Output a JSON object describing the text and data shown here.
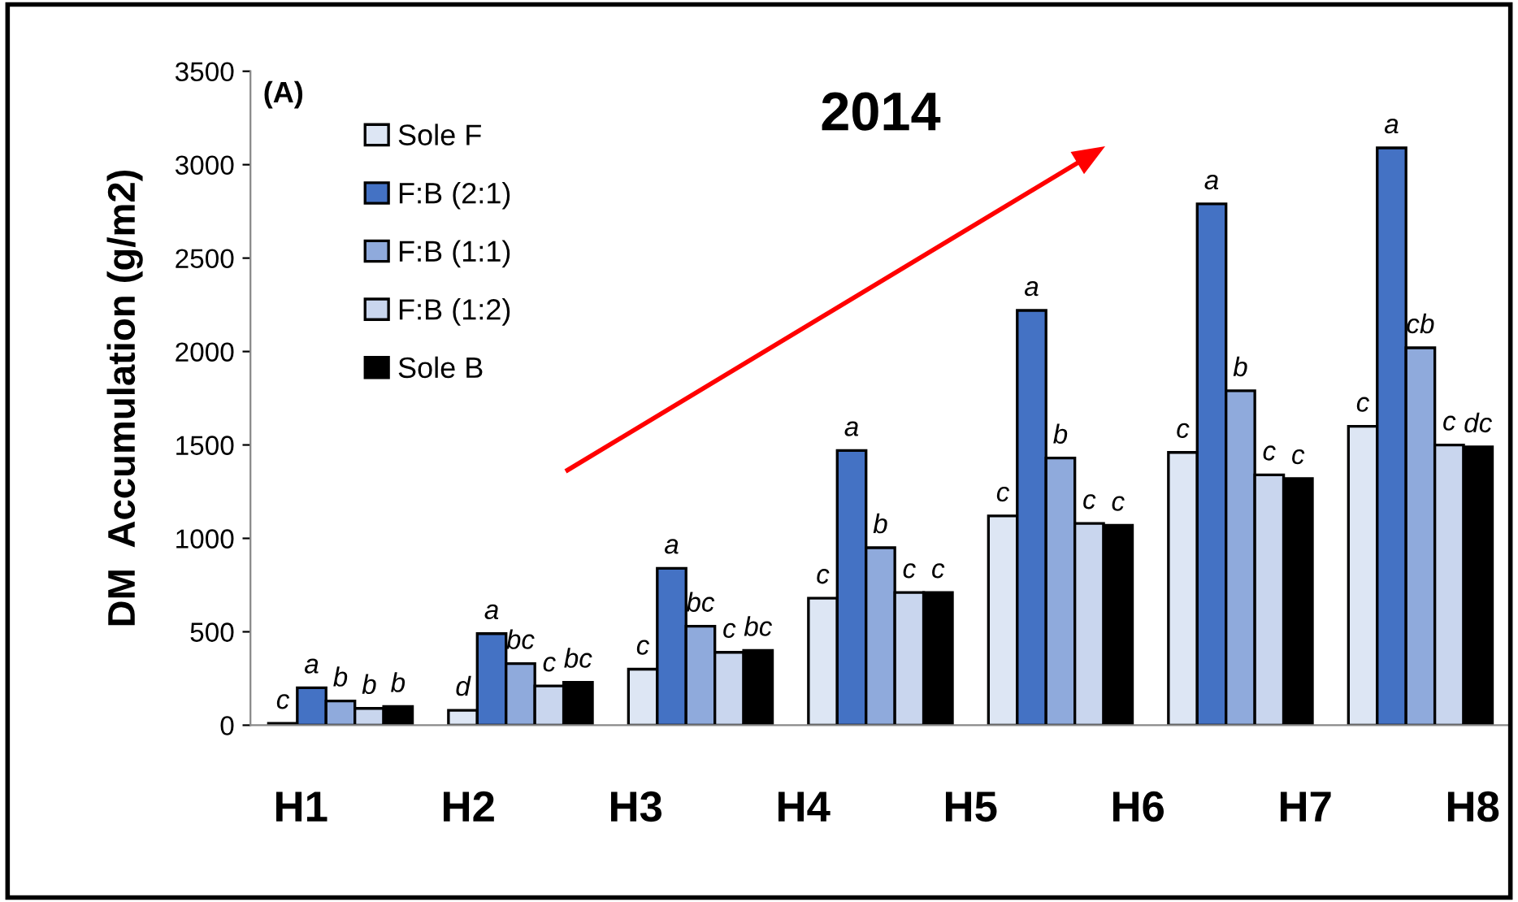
{
  "chart_data": {
    "type": "bar",
    "title": "2014",
    "ylabel": "DM  Accumulation (g/m2)",
    "categories": [
      null,
      null,
      null,
      null,
      null,
      null,
      null
    ],
    "series": [
      {
        "name": "Sole F",
        "color": "#dde6f4",
        "values": [
          10,
          80,
          300,
          680,
          1120,
          1460,
          1600
        ],
        "value_labels": [
          "c",
          "d",
          "c",
          "c",
          "c",
          "c",
          "c"
        ]
      },
      {
        "name": "F:B (2:1)",
        "color": "#4472c4",
        "values": [
          200,
          490,
          840,
          1470,
          2220,
          2790,
          3090
        ],
        "value_labels": [
          "a",
          "a",
          "a",
          "a",
          "a",
          "a",
          "a"
        ]
      },
      {
        "name": "F:B (1:1)",
        "color": "#8faadc",
        "values": [
          130,
          330,
          530,
          950,
          1430,
          1790,
          2020
        ],
        "value_labels": [
          "b",
          "bc",
          "bc",
          "b",
          "b",
          "b",
          "cb"
        ]
      },
      {
        "name": "F:B (1:2)",
        "color": "#c9d6ee",
        "values": [
          90,
          210,
          390,
          710,
          1080,
          1340,
          1500
        ],
        "value_labels": [
          "b",
          "c",
          "c",
          "c",
          "c",
          "c",
          "c"
        ]
      },
      {
        "name": "Sole B",
        "color": "#000000",
        "values": [
          100,
          230,
          400,
          710,
          1070,
          1320,
          1490
        ],
        "value_labels": [
          "b",
          "bc",
          "bc",
          "c",
          "c",
          "c",
          "dc"
        ]
      }
    ],
    "ylim": [
      0,
      3500
    ],
    "yticks": [
      0,
      500,
      1000,
      1500,
      2000,
      2500,
      3000,
      3500
    ],
    "grid": false,
    "legend": "top left",
    "annotations": [
      "(A)",
      "H1",
      "H2",
      "H3",
      "H4",
      "H5",
      "H6",
      "H7",
      "H8"
    ]
  }
}
